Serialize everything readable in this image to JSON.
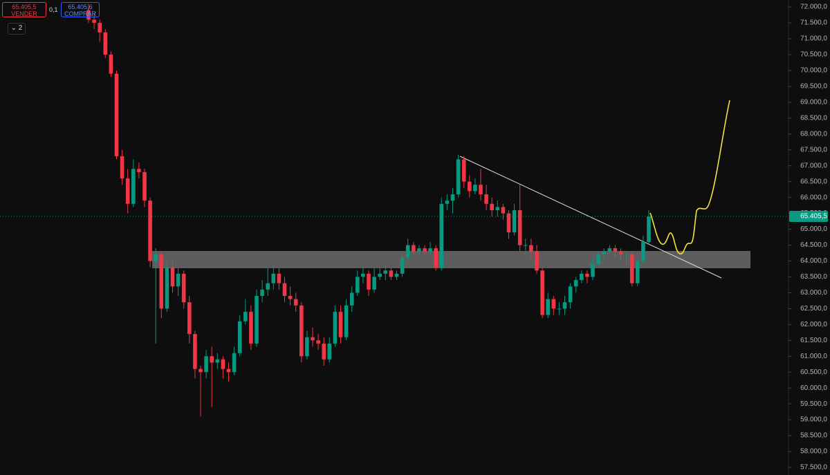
{
  "header": {
    "sell": {
      "price": "65.405,5",
      "label": "VENDER"
    },
    "spread": "0,1",
    "buy": {
      "price": "65.405,6",
      "label": "COMPRAR"
    },
    "indicators": "2"
  },
  "chart_data": {
    "type": "candlestick",
    "up_color": "#089981",
    "down_color": "#f23645",
    "grid": false,
    "ylim": [
      57260,
      72220
    ],
    "yticks": [
      {
        "value": 57500,
        "label": "57.500,0"
      },
      {
        "value": 58000,
        "label": "58.000,0"
      },
      {
        "value": 58500,
        "label": "58.500,0"
      },
      {
        "value": 59000,
        "label": "59.000,0"
      },
      {
        "value": 59500,
        "label": "59.500,0"
      },
      {
        "value": 60000,
        "label": "60.000,0"
      },
      {
        "value": 60500,
        "label": "60.500,0"
      },
      {
        "value": 61000,
        "label": "61.000,0"
      },
      {
        "value": 61500,
        "label": "61.500,0"
      },
      {
        "value": 62000,
        "label": "62.000,0"
      },
      {
        "value": 62500,
        "label": "62.500,0"
      },
      {
        "value": 63000,
        "label": "63.000,0"
      },
      {
        "value": 63500,
        "label": "63.500,0"
      },
      {
        "value": 64000,
        "label": "64.000,0"
      },
      {
        "value": 64500,
        "label": "64.500,0"
      },
      {
        "value": 65000,
        "label": "65.000,0"
      },
      {
        "value": 65500,
        "label": "65.500,0"
      },
      {
        "value": 66000,
        "label": "66.000,0"
      },
      {
        "value": 66500,
        "label": "66.500,0"
      },
      {
        "value": 67000,
        "label": "67.000,0"
      },
      {
        "value": 67500,
        "label": "67.500,0"
      },
      {
        "value": 68000,
        "label": "68.000,0"
      },
      {
        "value": 68500,
        "label": "68.500,0"
      },
      {
        "value": 69000,
        "label": "69.000,0"
      },
      {
        "value": 69500,
        "label": "69.500,0"
      },
      {
        "value": 70000,
        "label": "70.000,0"
      },
      {
        "value": 70500,
        "label": "70.500,0"
      },
      {
        "value": 71000,
        "label": "71.000,0"
      },
      {
        "value": 71500,
        "label": "71.500,0"
      },
      {
        "value": 72000,
        "label": "72.000,0"
      }
    ],
    "last_price": {
      "value": 65405.5,
      "label": "65.405,5"
    },
    "open": [
      71900,
      71600,
      71500,
      71200,
      70500,
      69900,
      67300,
      66600,
      65800,
      66900,
      66800,
      65900,
      64000,
      64200,
      62500,
      63800,
      63200,
      63600,
      62700,
      61700,
      60600,
      60500,
      61000,
      60800,
      60900,
      60600,
      60500,
      61100,
      62100,
      62400,
      61400,
      62900,
      63100,
      63300,
      63600,
      63300,
      62900,
      62800,
      62600,
      61000,
      61600,
      61500,
      61400,
      60900,
      61400,
      62400,
      61600,
      62600,
      63000,
      63500,
      63600,
      63100,
      63500,
      63600,
      63700,
      63500,
      63600,
      64100,
      64500,
      64300,
      64400,
      64300,
      64400,
      63800,
      65800,
      65900,
      66100,
      67200,
      66500,
      66200,
      66400,
      66100,
      65800,
      65600,
      65700,
      65500,
      64900,
      65600,
      64500,
      64500,
      64300,
      63700,
      62300,
      62800,
      62500,
      62500,
      62700,
      63200,
      63400,
      63600,
      63500,
      63900,
      64200,
      64300,
      64400,
      64300,
      64200,
      64200,
      63300,
      64000,
      64600
    ],
    "high": [
      72100,
      71800,
      71600,
      71300,
      70600,
      70000,
      67500,
      66900,
      67200,
      67100,
      66900,
      66000,
      64400,
      64300,
      64000,
      64000,
      63800,
      63700,
      62900,
      61800,
      60700,
      61200,
      61300,
      61100,
      61000,
      60800,
      61300,
      62300,
      62800,
      62600,
      63100,
      63400,
      63800,
      63900,
      63800,
      63500,
      63200,
      63000,
      62700,
      61800,
      61900,
      61700,
      61600,
      61600,
      62600,
      62600,
      62800,
      63200,
      63700,
      63800,
      63700,
      63800,
      63800,
      63900,
      63800,
      63700,
      64200,
      64700,
      64600,
      64500,
      64500,
      64600,
      64500,
      66000,
      66100,
      66300,
      67350,
      67300,
      66700,
      66600,
      66900,
      66400,
      66000,
      65900,
      65800,
      65600,
      65800,
      66400,
      64700,
      64700,
      64500,
      63800,
      63000,
      62900,
      62700,
      62900,
      63300,
      63500,
      63700,
      63700,
      64100,
      64300,
      64400,
      64500,
      64500,
      64400,
      64300,
      64300,
      64100,
      64800,
      65600
    ],
    "low": [
      71500,
      71300,
      70900,
      70400,
      69800,
      67200,
      66400,
      65500,
      65700,
      66600,
      65700,
      63800,
      61400,
      62200,
      62400,
      63000,
      62900,
      62500,
      61400,
      60300,
      59100,
      60300,
      59400,
      60600,
      60300,
      60200,
      60400,
      61000,
      62000,
      61200,
      61300,
      62700,
      62900,
      63100,
      63100,
      62700,
      62600,
      62400,
      60800,
      60900,
      61300,
      61200,
      60700,
      60800,
      61300,
      61400,
      61500,
      62400,
      62900,
      63300,
      62900,
      63000,
      63400,
      63400,
      63400,
      63400,
      63500,
      64000,
      64200,
      64200,
      64200,
      64200,
      63700,
      63700,
      65600,
      65500,
      66000,
      66300,
      66000,
      66100,
      65900,
      65600,
      65400,
      65400,
      65300,
      64700,
      64800,
      64300,
      64200,
      64100,
      63600,
      62200,
      62200,
      62300,
      62300,
      62300,
      62500,
      63000,
      63300,
      63300,
      63400,
      63800,
      64000,
      64200,
      64100,
      64000,
      63900,
      63200,
      63200,
      63900,
      64500
    ],
    "close": [
      71600,
      71500,
      71200,
      70500,
      69900,
      67300,
      66600,
      65800,
      66900,
      66800,
      65900,
      64000,
      64200,
      62500,
      63800,
      63200,
      63600,
      62700,
      61700,
      60600,
      60500,
      61000,
      60800,
      60900,
      60600,
      60500,
      61100,
      62100,
      62400,
      61400,
      62900,
      63100,
      63300,
      63600,
      63300,
      62900,
      62800,
      62600,
      61000,
      61600,
      61500,
      61400,
      60900,
      61400,
      62400,
      61600,
      62600,
      63000,
      63500,
      63600,
      63100,
      63500,
      63600,
      63700,
      63500,
      63600,
      64100,
      64500,
      64300,
      64400,
      64300,
      64400,
      63800,
      65800,
      65900,
      66100,
      67200,
      66500,
      66200,
      66400,
      66100,
      65800,
      65600,
      65700,
      65500,
      64900,
      65600,
      64500,
      64500,
      64300,
      63700,
      62300,
      62800,
      62500,
      62500,
      62700,
      63200,
      63400,
      63600,
      63500,
      63900,
      64200,
      64300,
      64400,
      64300,
      64200,
      64200,
      63300,
      64000,
      64600,
      65400
    ]
  }
}
